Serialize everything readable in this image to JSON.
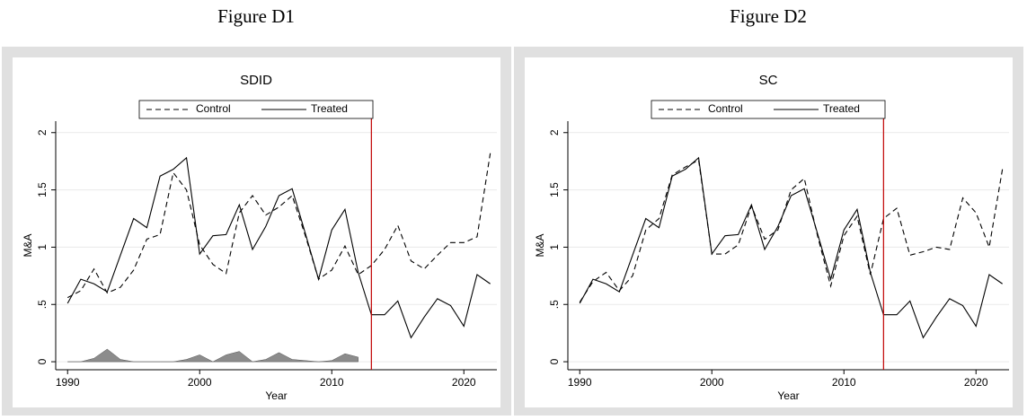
{
  "chart_data": [
    {
      "type": "line",
      "figure_label": "Figure D1",
      "title": "SDID",
      "xlabel": "Year",
      "ylabel": "M&A",
      "x": [
        1990,
        1991,
        1992,
        1993,
        1994,
        1995,
        1996,
        1997,
        1998,
        1999,
        2000,
        2001,
        2002,
        2003,
        2004,
        2005,
        2006,
        2007,
        2008,
        2009,
        2010,
        2011,
        2012,
        2013,
        2014,
        2015,
        2016,
        2017,
        2018,
        2019,
        2020,
        2021,
        2022
      ],
      "series": [
        {
          "name": "Control",
          "color": "#000000",
          "dashed": true,
          "values": [
            0.56,
            0.62,
            0.81,
            0.6,
            0.65,
            0.8,
            1.07,
            1.11,
            1.65,
            1.5,
            1.02,
            0.85,
            0.77,
            1.3,
            1.45,
            1.28,
            1.35,
            1.45,
            1.1,
            0.72,
            0.8,
            1.01,
            0.76,
            0.84,
            0.98,
            1.19,
            0.88,
            0.81,
            0.93,
            1.04,
            1.04,
            1.09,
            1.82
          ]
        },
        {
          "name": "Treated",
          "color": "#000000",
          "dashed": false,
          "values": [
            0.51,
            0.72,
            0.68,
            0.61,
            0.93,
            1.25,
            1.17,
            1.62,
            1.68,
            1.78,
            0.94,
            1.1,
            1.11,
            1.37,
            0.98,
            1.18,
            1.45,
            1.51,
            1.12,
            0.72,
            1.15,
            1.33,
            0.78,
            0.41,
            0.41,
            0.53,
            0.21,
            0.39,
            0.55,
            0.49,
            0.31,
            0.76,
            0.68
          ]
        }
      ],
      "area": {
        "color": "#8c8c8c",
        "values": [
          0,
          0,
          0.03,
          0.11,
          0.02,
          0,
          0,
          0,
          0,
          0.02,
          0.06,
          0,
          0.06,
          0.09,
          0,
          0.02,
          0.08,
          0.02,
          0.01,
          0,
          0.01,
          0.07,
          0.04
        ]
      },
      "vline": {
        "value": 2013,
        "color": "#c00000"
      },
      "xlim": [
        1989.1,
        2022.5
      ],
      "xticks": [
        1990,
        2000,
        2010,
        2020
      ],
      "ylim": [
        -0.07,
        2.1
      ],
      "yticks": [
        0,
        {
          "value": 0.5,
          "label": ".5"
        },
        1,
        1.5,
        2
      ],
      "grid": true
    },
    {
      "type": "line",
      "figure_label": "Figure D2",
      "title": "SC",
      "xlabel": "Year",
      "ylabel": "M&A",
      "x": [
        1990,
        1991,
        1992,
        1993,
        1994,
        1995,
        1996,
        1997,
        1998,
        1999,
        2000,
        2001,
        2002,
        2003,
        2004,
        2005,
        2006,
        2007,
        2008,
        2009,
        2010,
        2011,
        2012,
        2013,
        2014,
        2015,
        2016,
        2017,
        2018,
        2019,
        2020,
        2021,
        2022
      ],
      "series": [
        {
          "name": "Control",
          "color": "#000000",
          "dashed": true,
          "values": [
            0.52,
            0.7,
            0.78,
            0.62,
            0.75,
            1.15,
            1.25,
            1.63,
            1.7,
            1.76,
            0.94,
            0.94,
            1.02,
            1.36,
            1.07,
            1.15,
            1.5,
            1.6,
            1.1,
            0.66,
            1.1,
            1.27,
            0.76,
            1.25,
            1.34,
            0.93,
            0.96,
            1.0,
            0.98,
            1.43,
            1.3,
            1.0,
            1.68
          ]
        },
        {
          "name": "Treated",
          "color": "#000000",
          "dashed": false,
          "values": [
            0.51,
            0.72,
            0.68,
            0.61,
            0.93,
            1.25,
            1.17,
            1.62,
            1.68,
            1.78,
            0.94,
            1.1,
            1.11,
            1.37,
            0.98,
            1.18,
            1.45,
            1.51,
            1.12,
            0.72,
            1.15,
            1.33,
            0.78,
            0.41,
            0.41,
            0.53,
            0.21,
            0.39,
            0.55,
            0.49,
            0.31,
            0.76,
            0.68
          ]
        }
      ],
      "vline": {
        "value": 2013,
        "color": "#c00000"
      },
      "xlim": [
        1989.1,
        2022.5
      ],
      "xticks": [
        1990,
        2000,
        2010,
        2020
      ],
      "ylim": [
        -0.07,
        2.1
      ],
      "yticks": [
        0,
        {
          "value": 0.5,
          "label": ".5"
        },
        1,
        1.5,
        2
      ],
      "grid": true
    }
  ]
}
